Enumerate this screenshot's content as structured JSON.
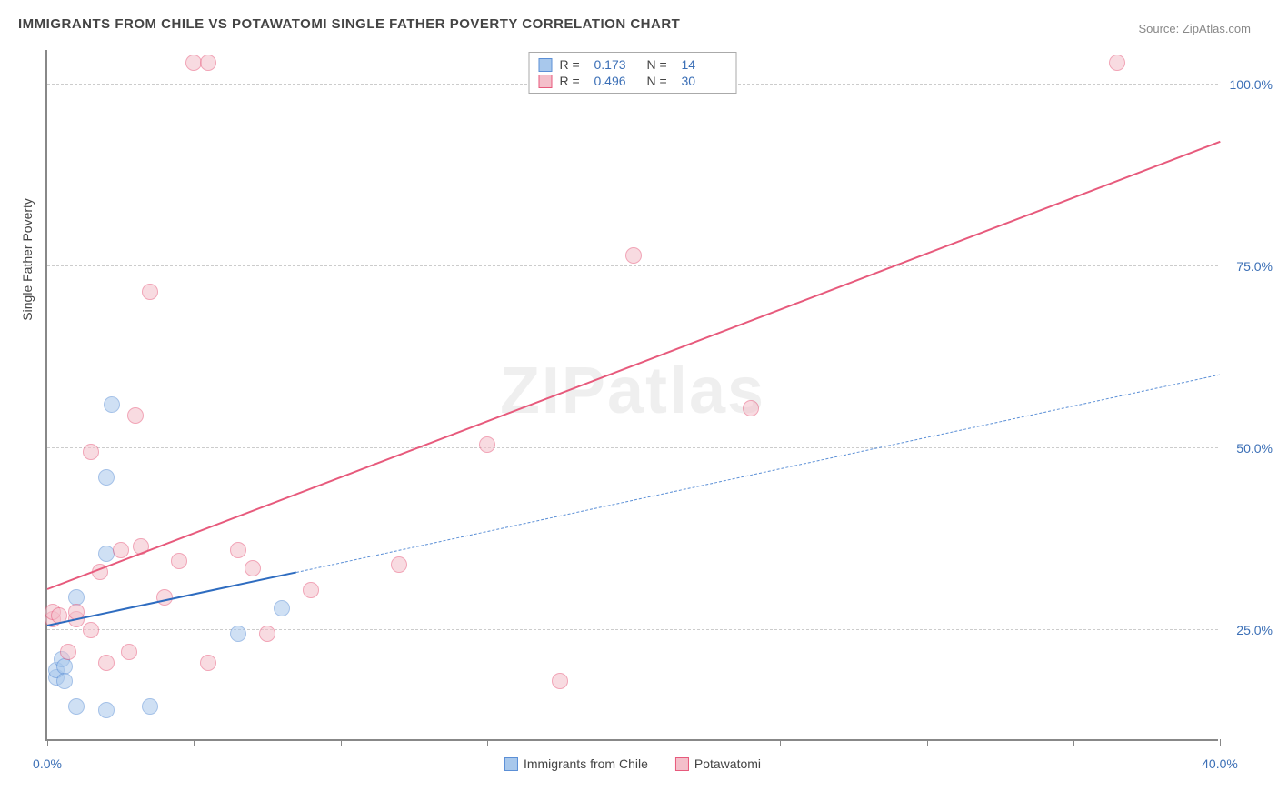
{
  "title": "IMMIGRANTS FROM CHILE VS POTAWATOMI SINGLE FATHER POVERTY CORRELATION CHART",
  "source_label": "Source: ",
  "source_name": "ZipAtlas.com",
  "ylabel": "Single Father Poverty",
  "watermark": "ZIPatlas",
  "chart": {
    "type": "scatter",
    "background_color": "#ffffff",
    "grid_color": "#cccccc",
    "axis_color": "#888888",
    "tick_label_color": "#3b6fb6",
    "xlim": [
      0,
      40
    ],
    "ylim": [
      10,
      105
    ],
    "xtick_values": [
      0,
      5,
      10,
      15,
      20,
      25,
      30,
      35,
      40
    ],
    "xtick_labels": [
      "0.0%",
      "",
      "",
      "",
      "",
      "",
      "",
      "",
      "40.0%"
    ],
    "ytick_values": [
      25,
      50,
      75,
      100
    ],
    "ytick_labels": [
      "25.0%",
      "50.0%",
      "75.0%",
      "100.0%"
    ],
    "label_fontsize": 14,
    "title_fontsize": 15,
    "marker_radius": 9,
    "marker_opacity": 0.55,
    "series": [
      {
        "name": "Immigrants from Chile",
        "color_fill": "#a8c8ec",
        "color_stroke": "#5b8fd6",
        "R": "0.173",
        "N": "14",
        "points": [
          [
            0.3,
            18.5
          ],
          [
            0.3,
            19.5
          ],
          [
            0.5,
            21.0
          ],
          [
            0.6,
            20.0
          ],
          [
            0.6,
            18.0
          ],
          [
            1.0,
            14.5
          ],
          [
            2.0,
            14.0
          ],
          [
            3.5,
            14.5
          ],
          [
            2.0,
            35.5
          ],
          [
            2.0,
            46.0
          ],
          [
            2.2,
            56.0
          ],
          [
            1.0,
            29.5
          ],
          [
            8.0,
            28.0
          ],
          [
            6.5,
            24.5
          ]
        ],
        "trend": {
          "x1": 0,
          "y1": 25.5,
          "x2": 40,
          "y2": 60.0,
          "solid_until_x": 8.5,
          "style_dashed_color": "#5b8fd6",
          "style_solid_color": "#2e6cc0",
          "width": 2
        }
      },
      {
        "name": "Potawatomi",
        "color_fill": "#f4bfca",
        "color_stroke": "#e75a7c",
        "R": "0.496",
        "N": "30",
        "points": [
          [
            0.2,
            26.5
          ],
          [
            0.2,
            27.5
          ],
          [
            0.4,
            27.0
          ],
          [
            0.7,
            22.0
          ],
          [
            1.0,
            26.5
          ],
          [
            1.0,
            27.5
          ],
          [
            1.5,
            25.0
          ],
          [
            1.5,
            49.5
          ],
          [
            1.8,
            33.0
          ],
          [
            2.0,
            20.5
          ],
          [
            2.5,
            36.0
          ],
          [
            2.8,
            22.0
          ],
          [
            3.0,
            54.5
          ],
          [
            3.2,
            36.5
          ],
          [
            3.5,
            71.5
          ],
          [
            4.0,
            29.5
          ],
          [
            4.5,
            34.5
          ],
          [
            5.0,
            103.0
          ],
          [
            5.5,
            103.0
          ],
          [
            5.5,
            20.5
          ],
          [
            6.5,
            36.0
          ],
          [
            7.0,
            33.5
          ],
          [
            7.5,
            24.5
          ],
          [
            9.0,
            30.5
          ],
          [
            12.0,
            34.0
          ],
          [
            15.0,
            50.5
          ],
          [
            17.5,
            18.0
          ],
          [
            20.0,
            76.5
          ],
          [
            24.0,
            55.5
          ],
          [
            36.5,
            103.0
          ]
        ],
        "trend": {
          "x1": 0,
          "y1": 30.5,
          "x2": 40,
          "y2": 92.0,
          "solid_until_x": 40,
          "style_solid_color": "#e75a7c",
          "width": 2.5
        }
      }
    ]
  },
  "legend_top": {
    "R_label": "R  =",
    "N_label": "N  ="
  },
  "legend_bottom": [
    {
      "swatch_fill": "#a8c8ec",
      "swatch_stroke": "#5b8fd6",
      "label": "Immigrants from Chile"
    },
    {
      "swatch_fill": "#f4bfca",
      "swatch_stroke": "#e75a7c",
      "label": "Potawatomi"
    }
  ]
}
